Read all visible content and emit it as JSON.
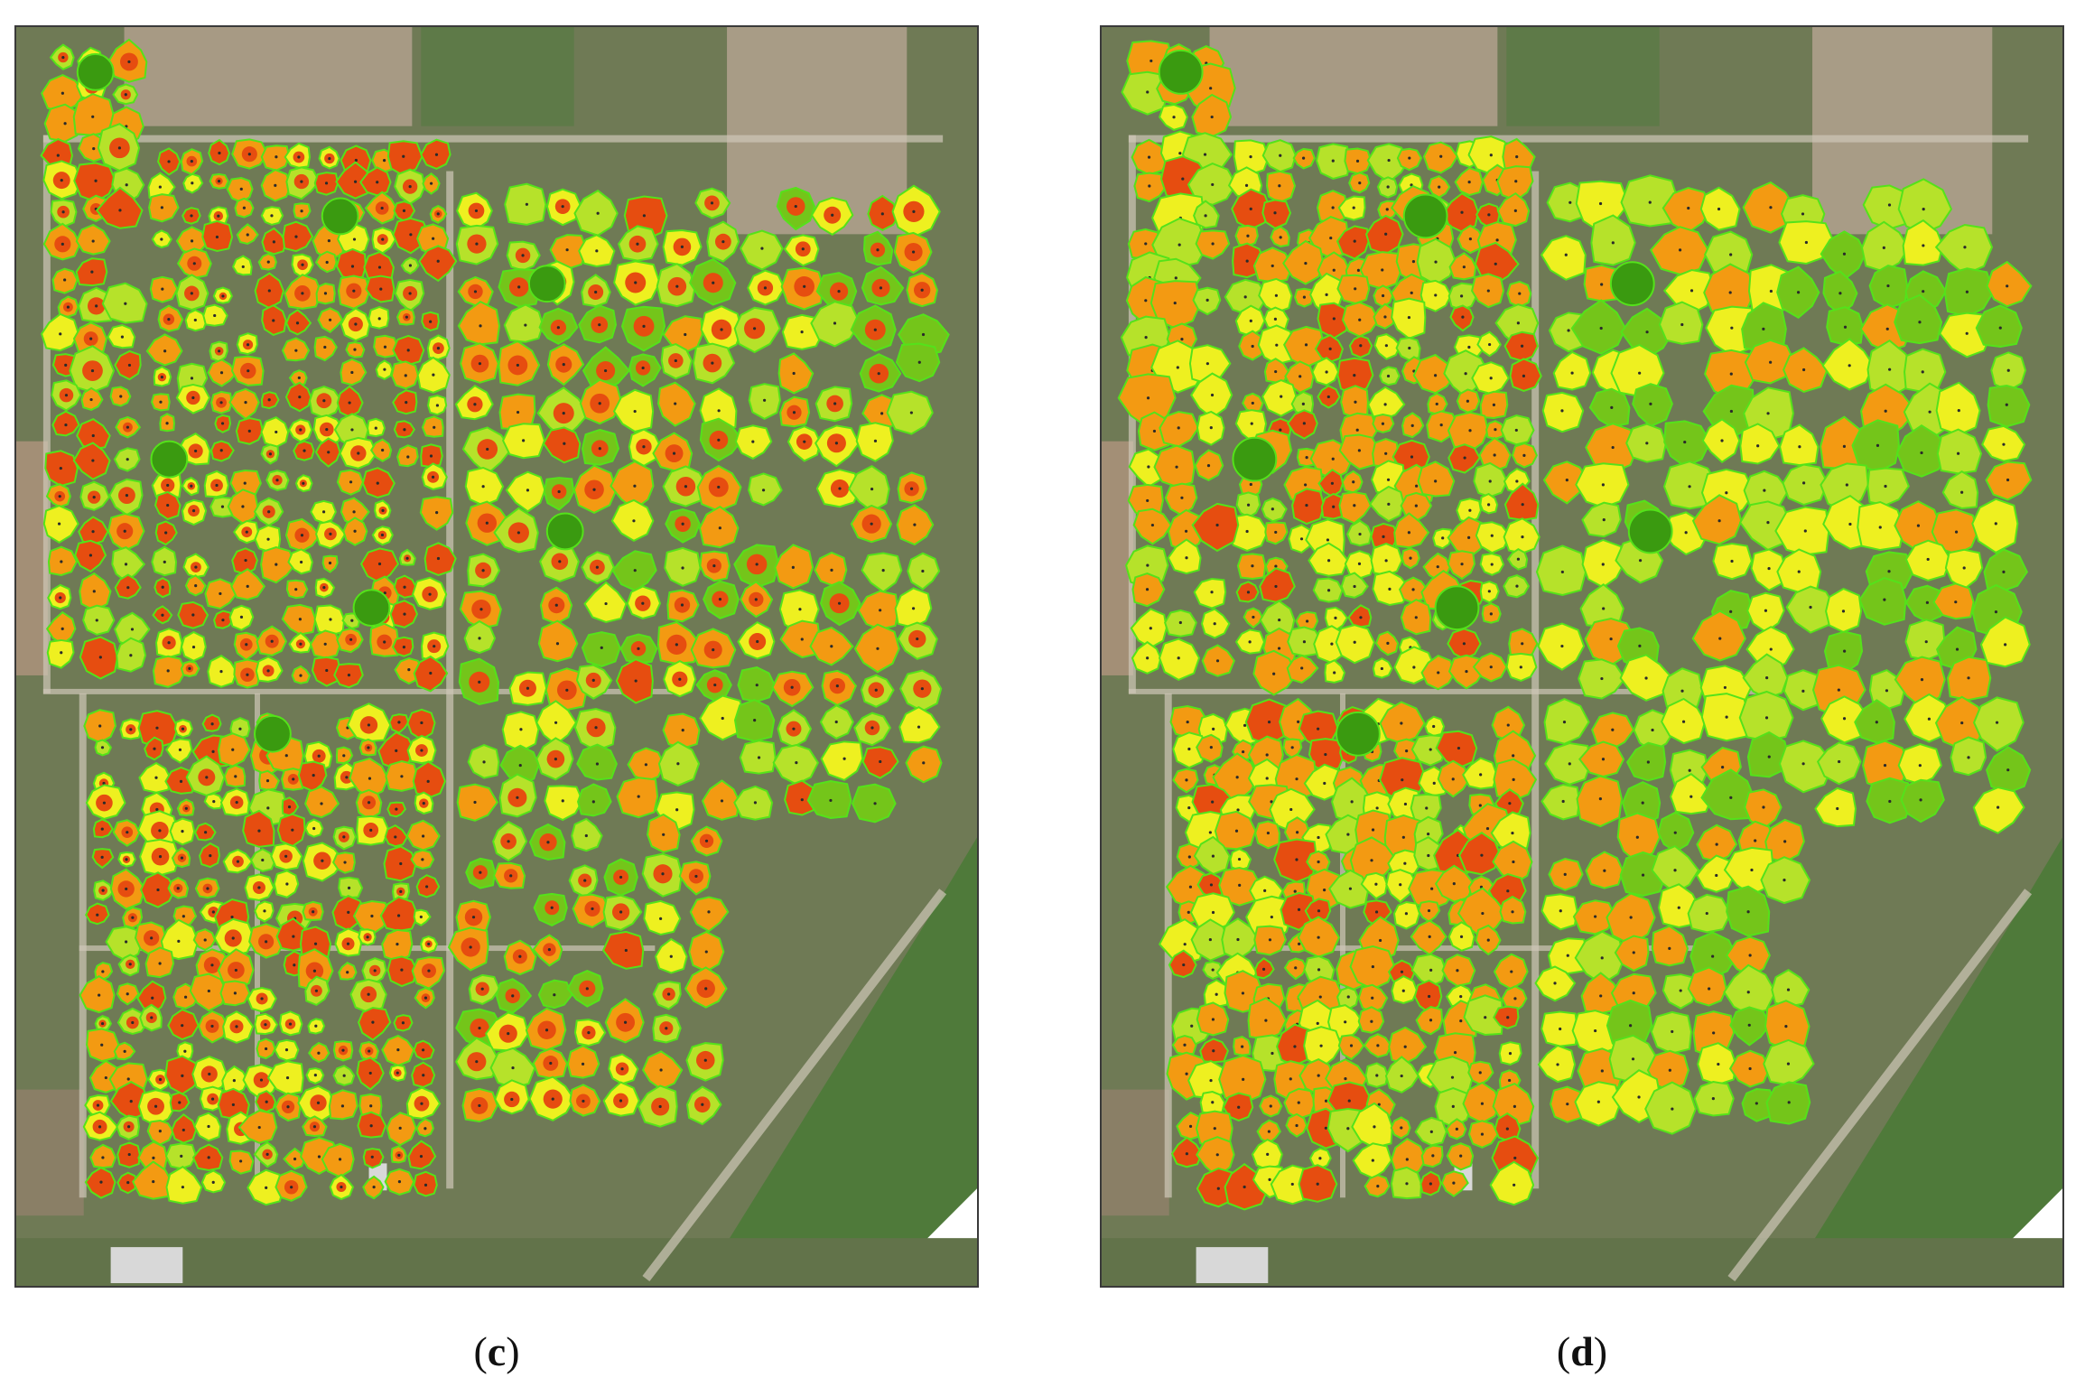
{
  "panels": [
    {
      "id": "c",
      "caption_open": "(",
      "caption_letter": "c",
      "caption_close": ")"
    },
    {
      "id": "d",
      "caption_open": "(",
      "caption_letter": "d",
      "caption_close": ")"
    }
  ],
  "colors": {
    "crown_dark_green": "#3a9a10",
    "crown_green": "#74c51a",
    "crown_yellow_green": "#b6e22a",
    "crown_yellow": "#eef020",
    "crown_orange": "#f39a12",
    "crown_red_orange": "#e64d10",
    "crown_outline": "#54e21a",
    "ground": "#6f7a55",
    "dirt_path": "#cfc8b8",
    "building_roof": "#d8d8d8"
  }
}
